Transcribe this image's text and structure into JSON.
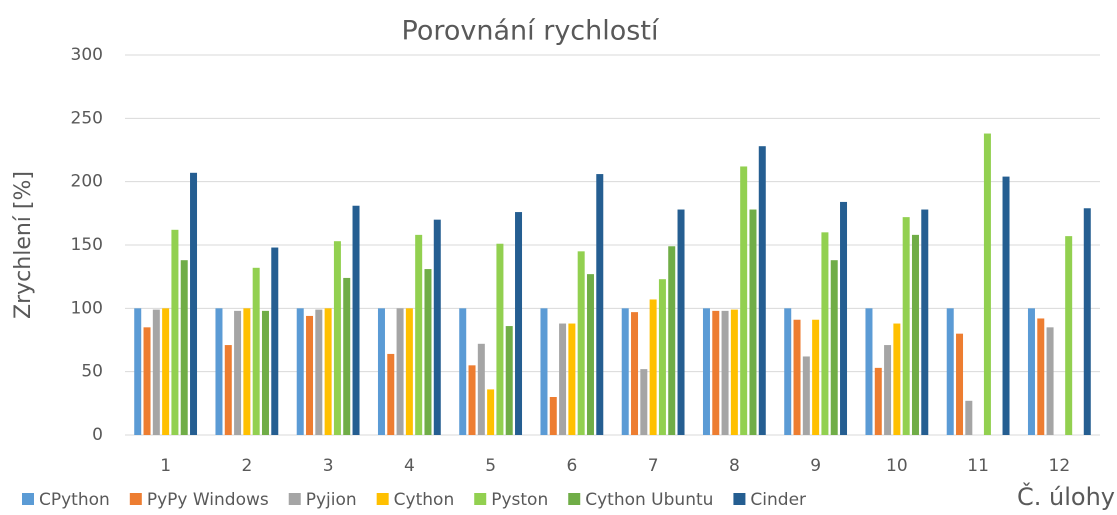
{
  "chart_data": {
    "type": "bar",
    "title": "Porovnání rychlostí",
    "y_label": "Zrychlení [%]",
    "x_label": "Č. úlohy",
    "categories": [
      "1",
      "2",
      "3",
      "4",
      "5",
      "6",
      "7",
      "8",
      "9",
      "10",
      "11",
      "12"
    ],
    "series": [
      {
        "name": "CPython",
        "color": "#5b9bd5",
        "values": [
          100,
          100,
          100,
          100,
          100,
          100,
          100,
          100,
          100,
          100,
          100,
          100
        ]
      },
      {
        "name": "PyPy Windows",
        "color": "#ed7d31",
        "values": [
          85,
          71,
          94,
          64,
          55,
          30,
          97,
          98,
          91,
          53,
          80,
          92
        ]
      },
      {
        "name": "Pyjion",
        "color": "#a5a5a5",
        "values": [
          99,
          98,
          99,
          100,
          72,
          88,
          52,
          98,
          62,
          71,
          27,
          85
        ]
      },
      {
        "name": "Cython",
        "color": "#ffc000",
        "values": [
          100,
          100,
          100,
          100,
          36,
          88,
          107,
          99,
          91,
          88,
          null,
          null
        ]
      },
      {
        "name": "Pyston",
        "color": "#92d050",
        "values": [
          162,
          132,
          153,
          158,
          151,
          145,
          123,
          212,
          160,
          172,
          238,
          157
        ]
      },
      {
        "name": "Cython Ubuntu",
        "color": "#70ad47",
        "values": [
          138,
          98,
          124,
          131,
          86,
          127,
          149,
          178,
          138,
          158,
          null,
          null
        ]
      },
      {
        "name": "Cinder",
        "color": "#255e91",
        "values": [
          207,
          148,
          181,
          170,
          176,
          206,
          178,
          228,
          184,
          178,
          204,
          179
        ]
      }
    ],
    "ylim": [
      0,
      300
    ],
    "yticks": [
      0,
      50,
      100,
      150,
      200,
      250,
      300
    ],
    "grid": true,
    "legend": "bottom"
  }
}
